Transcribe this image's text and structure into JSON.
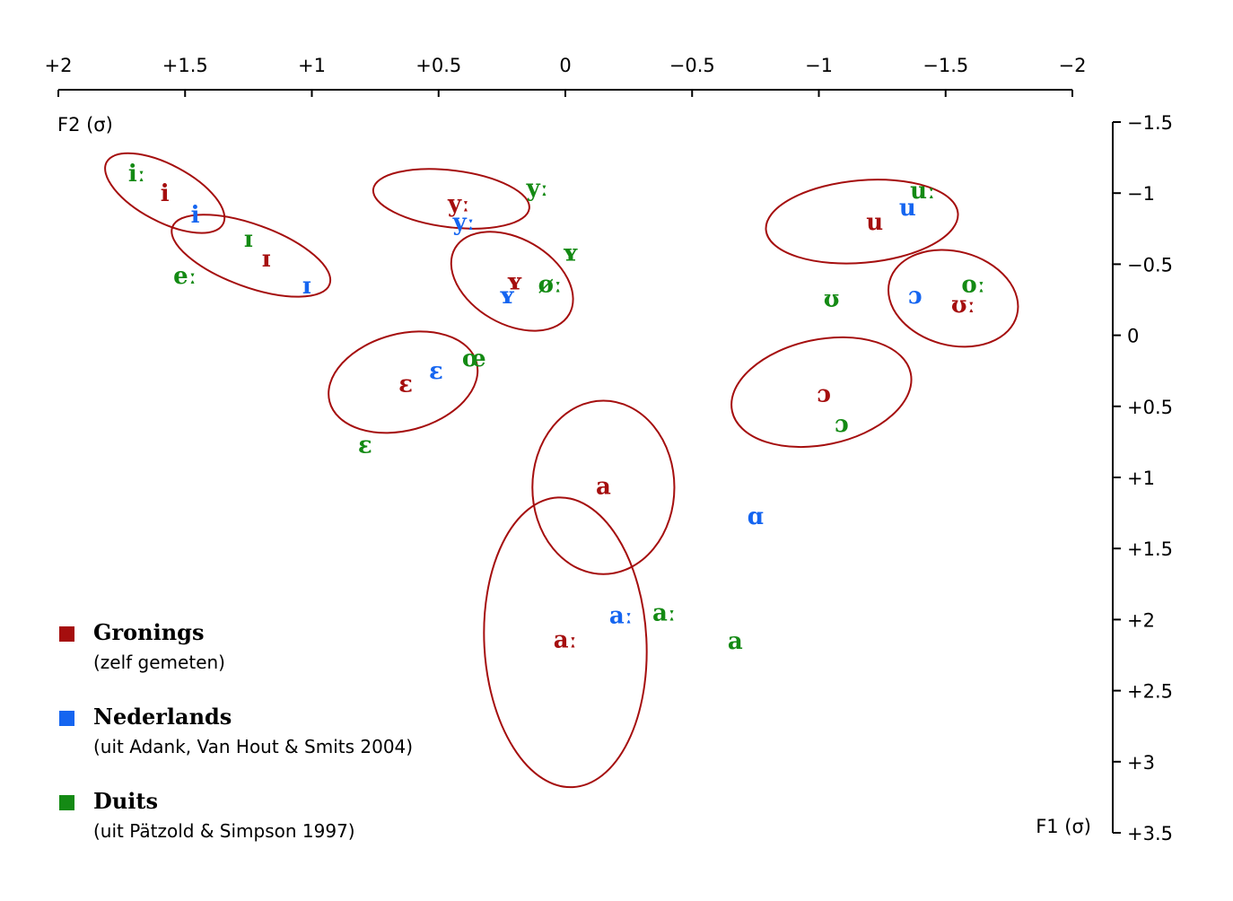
{
  "colors": {
    "gronings": "#a50e0e",
    "nederlands": "#1565f0",
    "duits": "#148a14",
    "axis": "#000000"
  },
  "chart_data": {
    "type": "scatter",
    "title": "",
    "xlabel": "F2 (σ)",
    "ylabel": "F1 (σ)",
    "xlim": [
      2,
      -2
    ],
    "ylim": [
      -1.5,
      3.5
    ],
    "x_axis_position": "top",
    "y_axis_position": "right",
    "x_ticks": [
      "+2",
      "+1.5",
      "+1",
      "+0.5",
      "0",
      "−0.5",
      "−1",
      "−1.5",
      "−2"
    ],
    "x_tick_values": [
      2,
      1.5,
      1,
      0.5,
      0,
      -0.5,
      -1,
      -1.5,
      -2
    ],
    "y_ticks": [
      "−1.5",
      "−1",
      "−0.5",
      "0",
      "+0.5",
      "+1",
      "+1.5",
      "+2",
      "+2.5",
      "+3",
      "+3.5"
    ],
    "y_tick_values": [
      -1.5,
      -1,
      -0.5,
      0,
      0.5,
      1,
      1.5,
      2,
      2.5,
      3,
      3.5
    ],
    "series": [
      {
        "name": "Gronings",
        "color_key": "gronings",
        "points": [
          {
            "label": "i",
            "x": 1.58,
            "y": -1.0
          },
          {
            "label": "yː",
            "x": 0.42,
            "y": -0.93
          },
          {
            "label": "u",
            "x": -1.22,
            "y": -0.8
          },
          {
            "label": "ɪ",
            "x": 1.18,
            "y": -0.54
          },
          {
            "label": "ʏ",
            "x": 0.2,
            "y": -0.38
          },
          {
            "label": "ʊː",
            "x": -1.57,
            "y": -0.22
          },
          {
            "label": "ɛ",
            "x": 0.63,
            "y": 0.34
          },
          {
            "label": "ɔ",
            "x": -1.02,
            "y": 0.41
          },
          {
            "label": "a",
            "x": -0.15,
            "y": 1.06
          },
          {
            "label": "aː",
            "x": 0.0,
            "y": 2.14
          }
        ],
        "ellipses": [
          {
            "label": "i",
            "cx": 1.58,
            "cy": -1.0,
            "rx": 0.26,
            "ry": 0.2,
            "rotation": 28
          },
          {
            "label": "ɪ",
            "cx": 1.24,
            "cy": -0.56,
            "rx": 0.33,
            "ry": 0.22,
            "rotation": 20
          },
          {
            "label": "yː",
            "cx": 0.45,
            "cy": -0.96,
            "rx": 0.31,
            "ry": 0.2,
            "rotation": 7
          },
          {
            "label": "ʏ",
            "cx": 0.21,
            "cy": -0.38,
            "rx": 0.26,
            "ry": 0.3,
            "rotation": 30
          },
          {
            "label": "u",
            "cx": -1.17,
            "cy": -0.8,
            "rx": 0.38,
            "ry": 0.29,
            "rotation": -5
          },
          {
            "label": "ʊː",
            "cx": -1.53,
            "cy": -0.26,
            "rx": 0.26,
            "ry": 0.33,
            "rotation": 15
          },
          {
            "label": "ɛ",
            "cx": 0.64,
            "cy": 0.33,
            "rx": 0.3,
            "ry": 0.34,
            "rotation": -15
          },
          {
            "label": "ɔ",
            "cx": -1.01,
            "cy": 0.4,
            "rx": 0.36,
            "ry": 0.37,
            "rotation": -12
          },
          {
            "label": "a",
            "cx": -0.15,
            "cy": 1.07,
            "rx": 0.28,
            "ry": 0.61,
            "rotation": 0
          },
          {
            "label": "aː",
            "cx": 0.0,
            "cy": 2.16,
            "rx": 0.32,
            "ry": 1.02,
            "rotation": -3
          }
        ]
      },
      {
        "name": "Nederlands",
        "color_key": "nederlands",
        "points": [
          {
            "label": "i",
            "x": 1.46,
            "y": -0.85
          },
          {
            "label": "yː",
            "x": 0.4,
            "y": -0.8
          },
          {
            "label": "u",
            "x": -1.35,
            "y": -0.9
          },
          {
            "label": "ɪ",
            "x": 1.02,
            "y": -0.35
          },
          {
            "label": "ʏ",
            "x": 0.23,
            "y": -0.28
          },
          {
            "label": "ɔ",
            "x": -1.38,
            "y": -0.28
          },
          {
            "label": "ɛ",
            "x": 0.51,
            "y": 0.25
          },
          {
            "label": "ɑ",
            "x": -0.75,
            "y": 1.27
          },
          {
            "label": "aː",
            "x": -0.22,
            "y": 1.97
          }
        ]
      },
      {
        "name": "Duits",
        "color_key": "duits",
        "points": [
          {
            "label": "iː",
            "x": 1.69,
            "y": -1.14
          },
          {
            "label": "yː",
            "x": 0.11,
            "y": -1.04
          },
          {
            "label": "uː",
            "x": -1.41,
            "y": -1.02
          },
          {
            "label": "eː",
            "x": 1.5,
            "y": -0.42
          },
          {
            "label": "ɪ",
            "x": 1.25,
            "y": -0.68
          },
          {
            "label": "ʏ",
            "x": -0.02,
            "y": -0.58
          },
          {
            "label": "øː",
            "x": 0.06,
            "y": -0.36
          },
          {
            "label": "oː",
            "x": -1.61,
            "y": -0.36
          },
          {
            "label": "ʊ",
            "x": -1.05,
            "y": -0.26
          },
          {
            "label": "œ",
            "x": 0.36,
            "y": 0.16
          },
          {
            "label": "ɛ",
            "x": 0.79,
            "y": 0.77
          },
          {
            "label": "ɔ",
            "x": -1.09,
            "y": 0.62
          },
          {
            "label": "aː",
            "x": -0.39,
            "y": 1.95
          },
          {
            "label": "a",
            "x": -0.67,
            "y": 2.15
          }
        ]
      }
    ]
  },
  "legend": {
    "items": [
      {
        "name": "Gronings",
        "sub": "(zelf gemeten)"
      },
      {
        "name": "Nederlands",
        "sub": "(uit Adank, Van Hout & Smits 2004)"
      },
      {
        "name": "Duits",
        "sub": "(uit Pätzold & Simpson 1997)"
      }
    ]
  }
}
